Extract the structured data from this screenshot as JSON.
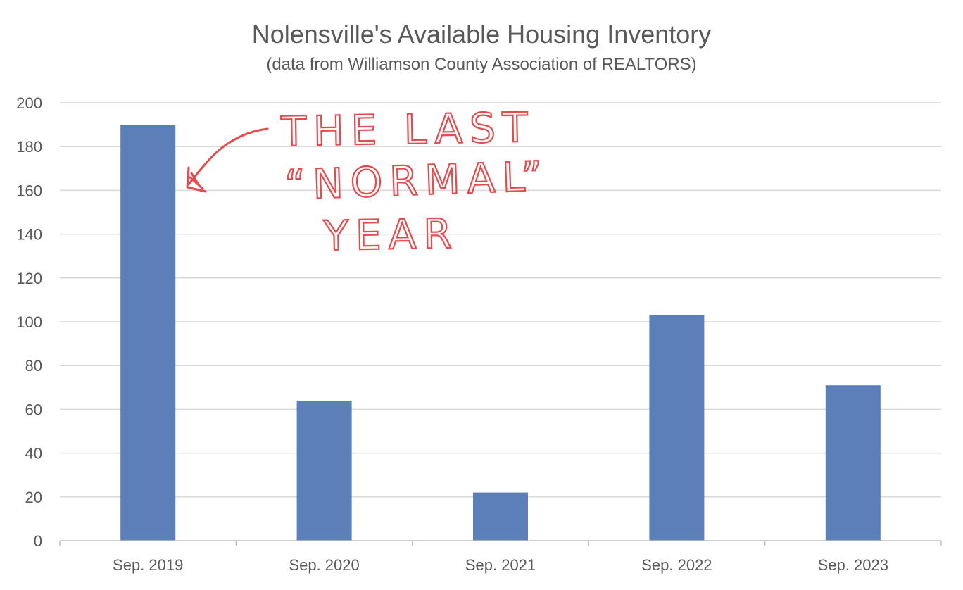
{
  "chart_data": {
    "type": "bar",
    "title": "Nolensville's Available Housing Inventory",
    "subtitle": "(data from Williamson County Association of REALTORS)",
    "categories": [
      "Sep. 2019",
      "Sep. 2020",
      "Sep. 2021",
      "Sep. 2022",
      "Sep. 2023"
    ],
    "values": [
      190,
      64,
      22,
      103,
      71
    ],
    "ylim": [
      0,
      200
    ],
    "yticks": [
      0,
      20,
      40,
      60,
      80,
      100,
      120,
      140,
      160,
      180,
      200
    ],
    "grid": true,
    "bar_color": "#5b80b9",
    "annotation": {
      "lines": [
        "THE LAST",
        "“NORMAL”",
        "YEAR"
      ],
      "color": "#e8494d",
      "points_to": "Sep. 2019"
    }
  }
}
